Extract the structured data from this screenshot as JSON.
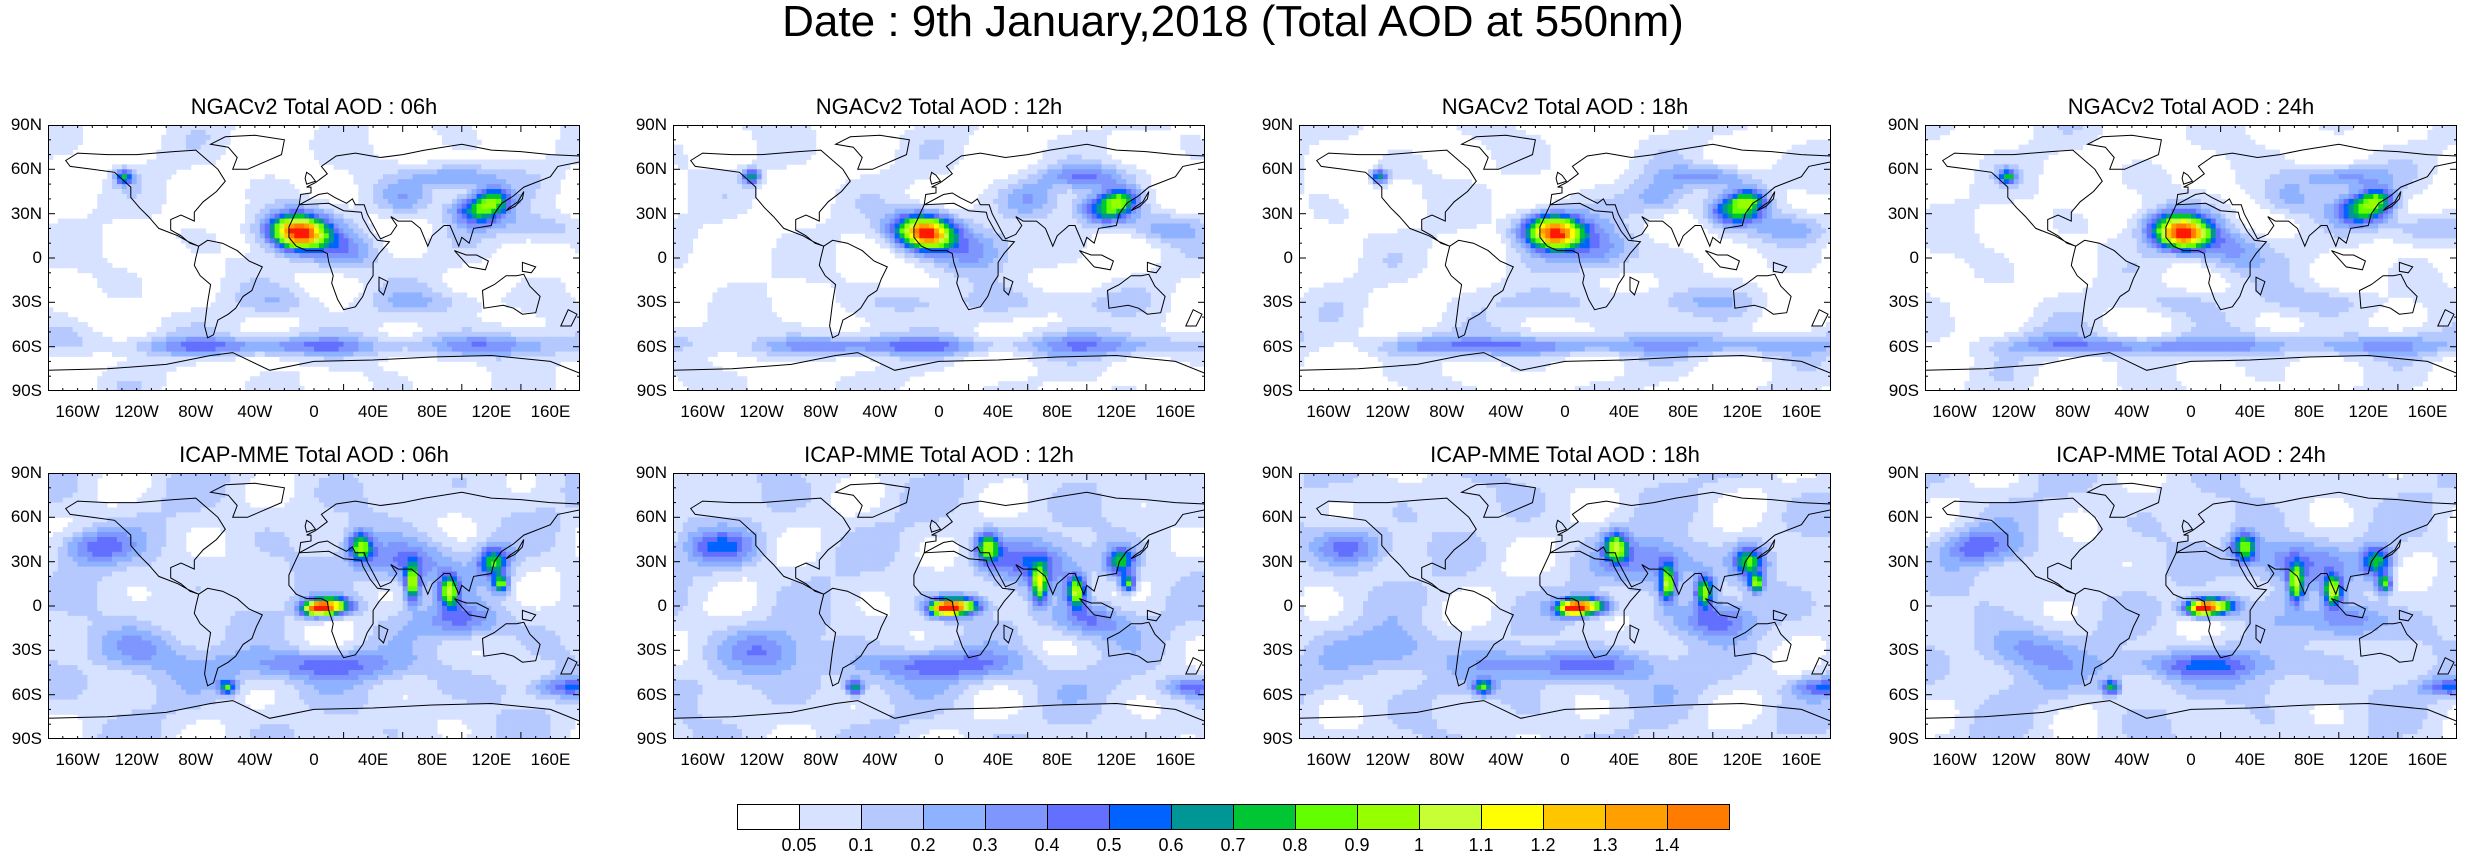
{
  "figure": {
    "title": "Date : 9th January,2018 (Total AOD at 550nm)"
  },
  "panels": [
    {
      "id": "ngacv2-06h",
      "title": "NGACv2 Total AOD : 06h",
      "model": "NGACv2",
      "hour": "06h"
    },
    {
      "id": "ngacv2-12h",
      "title": "NGACv2 Total AOD : 12h",
      "model": "NGACv2",
      "hour": "12h"
    },
    {
      "id": "ngacv2-18h",
      "title": "NGACv2 Total AOD : 18h",
      "model": "NGACv2",
      "hour": "18h"
    },
    {
      "id": "ngacv2-24h",
      "title": "NGACv2 Total AOD : 24h",
      "model": "NGACv2",
      "hour": "24h"
    },
    {
      "id": "icap-06h",
      "title": "ICAP-MME Total AOD : 06h",
      "model": "ICAP-MME",
      "hour": "06h"
    },
    {
      "id": "icap-12h",
      "title": "ICAP-MME Total AOD : 12h",
      "model": "ICAP-MME",
      "hour": "12h"
    },
    {
      "id": "icap-18h",
      "title": "ICAP-MME Total AOD : 18h",
      "model": "ICAP-MME",
      "hour": "18h"
    },
    {
      "id": "icap-24h",
      "title": "ICAP-MME Total AOD : 24h",
      "model": "ICAP-MME",
      "hour": "24h"
    }
  ],
  "axes": {
    "lat_labels": [
      "90N",
      "60N",
      "30N",
      "0",
      "30S",
      "60S",
      "90S"
    ],
    "lon_labels": [
      "160W",
      "120W",
      "80W",
      "40W",
      "0",
      "40E",
      "80E",
      "120E",
      "160E"
    ]
  },
  "colorbar": {
    "labels": [
      "0.05",
      "0.1",
      "0.2",
      "0.3",
      "0.4",
      "0.5",
      "0.6",
      "0.7",
      "0.8",
      "0.9",
      "1",
      "1.1",
      "1.2",
      "1.3",
      "1.4"
    ],
    "colors": [
      "#ffffff",
      "#d6e2ff",
      "#b5c9ff",
      "#8eb2ff",
      "#7f96ff",
      "#6370ff",
      "#0063ff",
      "#009696",
      "#00c633",
      "#63ff00",
      "#96ff00",
      "#c6ff33",
      "#ffff00",
      "#ffc600",
      "#ffa000",
      "#ff7c00",
      "#ff1900"
    ]
  }
}
